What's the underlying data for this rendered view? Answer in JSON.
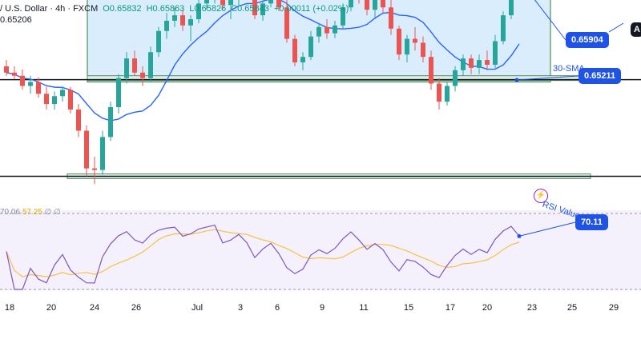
{
  "header": {
    "symbol": "/ U.S. Dollar · 4h · FXCM",
    "open": "O0.65832",
    "high": "H0.65863",
    "low": "L0.65826",
    "close": "C0.65843",
    "change": "+0.00011 (+0.02%)",
    "indicator_value": "0.65206"
  },
  "rsi_header": {
    "part1": "70.06",
    "part2": "57.25",
    "part3": "∅ ∅"
  },
  "annotations": {
    "price_badge": "0.65904",
    "sma_label": "30-SMA",
    "sma_badge": "0.65211",
    "rsi_label": "RSI Value",
    "rsi_badge": "70.11",
    "corner_letter": "A"
  },
  "colors": {
    "up": "#26a69a",
    "down": "#ef5350",
    "sma": "#2962ff",
    "rsi": "#7e57c2",
    "rsi_ma": "#f6c243",
    "zone": "#bbdefb",
    "badge": "#1e53e5"
  },
  "chart_data": [
    {
      "type": "candlestick",
      "x_tick_labels": [
        "18",
        "20",
        "24",
        "26",
        "Jul",
        "3",
        "6",
        "9",
        "11",
        "15",
        "17",
        "20",
        "23",
        "25",
        "29"
      ],
      "ylim": [
        0.6395,
        0.662
      ],
      "series": [
        {
          "kind": "ohlc",
          "values": [
            [
              0.656,
              0.6568,
              0.6548,
              0.6552
            ],
            [
              0.6552,
              0.656,
              0.6544,
              0.6548
            ],
            [
              0.6548,
              0.6556,
              0.653,
              0.6535
            ],
            [
              0.6535,
              0.6548,
              0.6525,
              0.654
            ],
            [
              0.654,
              0.6546,
              0.652,
              0.6525
            ],
            [
              0.6525,
              0.6534,
              0.6505,
              0.6512
            ],
            [
              0.6512,
              0.6528,
              0.6505,
              0.6522
            ],
            [
              0.6522,
              0.6535,
              0.6515,
              0.653
            ],
            [
              0.653,
              0.6534,
              0.65,
              0.6505
            ],
            [
              0.6505,
              0.6512,
              0.647,
              0.6478
            ],
            [
              0.6478,
              0.6485,
              0.642,
              0.643
            ],
            [
              0.643,
              0.6445,
              0.641,
              0.6428
            ],
            [
              0.6428,
              0.6478,
              0.6422,
              0.647
            ],
            [
              0.647,
              0.6515,
              0.6465,
              0.6508
            ],
            [
              0.6508,
              0.655,
              0.65,
              0.6545
            ],
            [
              0.6545,
              0.6578,
              0.6538,
              0.657
            ],
            [
              0.657,
              0.658,
              0.6548,
              0.6552
            ],
            [
              0.6552,
              0.656,
              0.6535,
              0.6545
            ],
            [
              0.6545,
              0.6585,
              0.654,
              0.6578
            ],
            [
              0.6578,
              0.661,
              0.6572,
              0.6605
            ],
            [
              0.6605,
              0.6628,
              0.6595,
              0.6618
            ],
            [
              0.6618,
              0.6635,
              0.661,
              0.6625
            ],
            [
              0.6625,
              0.6632,
              0.6605,
              0.6612
            ],
            [
              0.6612,
              0.6625,
              0.6592,
              0.662
            ],
            [
              0.662,
              0.6646,
              0.6615,
              0.664
            ],
            [
              0.664,
              0.666,
              0.6632,
              0.665
            ],
            [
              0.665,
              0.6668,
              0.664,
              0.666
            ],
            [
              0.666,
              0.6665,
              0.6632,
              0.6638
            ],
            [
              0.6638,
              0.6652,
              0.662,
              0.6645
            ],
            [
              0.6645,
              0.6666,
              0.6638,
              0.666
            ],
            [
              0.666,
              0.6668,
              0.6645,
              0.665
            ],
            [
              0.665,
              0.666,
              0.662,
              0.6625
            ],
            [
              0.6625,
              0.6648,
              0.6618,
              0.664
            ],
            [
              0.664,
              0.6658,
              0.6635,
              0.6652
            ],
            [
              0.6652,
              0.666,
              0.663,
              0.6635
            ],
            [
              0.6635,
              0.6645,
              0.659,
              0.6595
            ],
            [
              0.6595,
              0.66,
              0.656,
              0.6565
            ],
            [
              0.6565,
              0.6578,
              0.6555,
              0.6572
            ],
            [
              0.6572,
              0.6605,
              0.6568,
              0.6598
            ],
            [
              0.6598,
              0.6615,
              0.659,
              0.661
            ],
            [
              0.661,
              0.662,
              0.6595,
              0.6602
            ],
            [
              0.6602,
              0.6618,
              0.6596,
              0.6612
            ],
            [
              0.6612,
              0.664,
              0.6608,
              0.6635
            ],
            [
              0.6635,
              0.6668,
              0.663,
              0.666
            ],
            [
              0.666,
              0.6672,
              0.664,
              0.6648
            ],
            [
              0.6648,
              0.6665,
              0.6625,
              0.6632
            ],
            [
              0.6632,
              0.665,
              0.662,
              0.6645
            ],
            [
              0.6645,
              0.666,
              0.6628,
              0.6635
            ],
            [
              0.6635,
              0.6645,
              0.66,
              0.6608
            ],
            [
              0.6608,
              0.6612,
              0.6568,
              0.6575
            ],
            [
              0.6575,
              0.66,
              0.6565,
              0.6595
            ],
            [
              0.6595,
              0.661,
              0.658,
              0.659
            ],
            [
              0.659,
              0.6598,
              0.6565,
              0.6572
            ],
            [
              0.6572,
              0.658,
              0.653,
              0.6538
            ],
            [
              0.6538,
              0.6545,
              0.6505,
              0.6515
            ],
            [
              0.6515,
              0.654,
              0.651,
              0.6535
            ],
            [
              0.6535,
              0.656,
              0.6528,
              0.6555
            ],
            [
              0.6555,
              0.6575,
              0.6548,
              0.657
            ],
            [
              0.657,
              0.6575,
              0.655,
              0.6558
            ],
            [
              0.6558,
              0.6575,
              0.655,
              0.6568
            ],
            [
              0.6568,
              0.658,
              0.6555,
              0.6562
            ],
            [
              0.6562,
              0.66,
              0.6558,
              0.6592
            ],
            [
              0.6592,
              0.663,
              0.6588,
              0.6625
            ],
            [
              0.6625,
              0.666,
              0.662,
              0.6655
            ],
            [
              0.6655,
              0.667,
              0.6648,
              0.6665
            ]
          ]
        },
        {
          "kind": "sma",
          "period": 30,
          "last_value": 0.65211
        }
      ],
      "zones": [
        {
          "name": "range",
          "from": 0.654,
          "to": 0.6668
        },
        {
          "name": "support",
          "value": 0.6545
        },
        {
          "name": "lower-support",
          "value": 0.642
        }
      ]
    },
    {
      "type": "line",
      "series": [
        {
          "name": "RSI",
          "last_value": 70.11
        }
      ],
      "ylim": [
        0,
        100
      ],
      "levels": [
        70,
        30
      ]
    }
  ]
}
